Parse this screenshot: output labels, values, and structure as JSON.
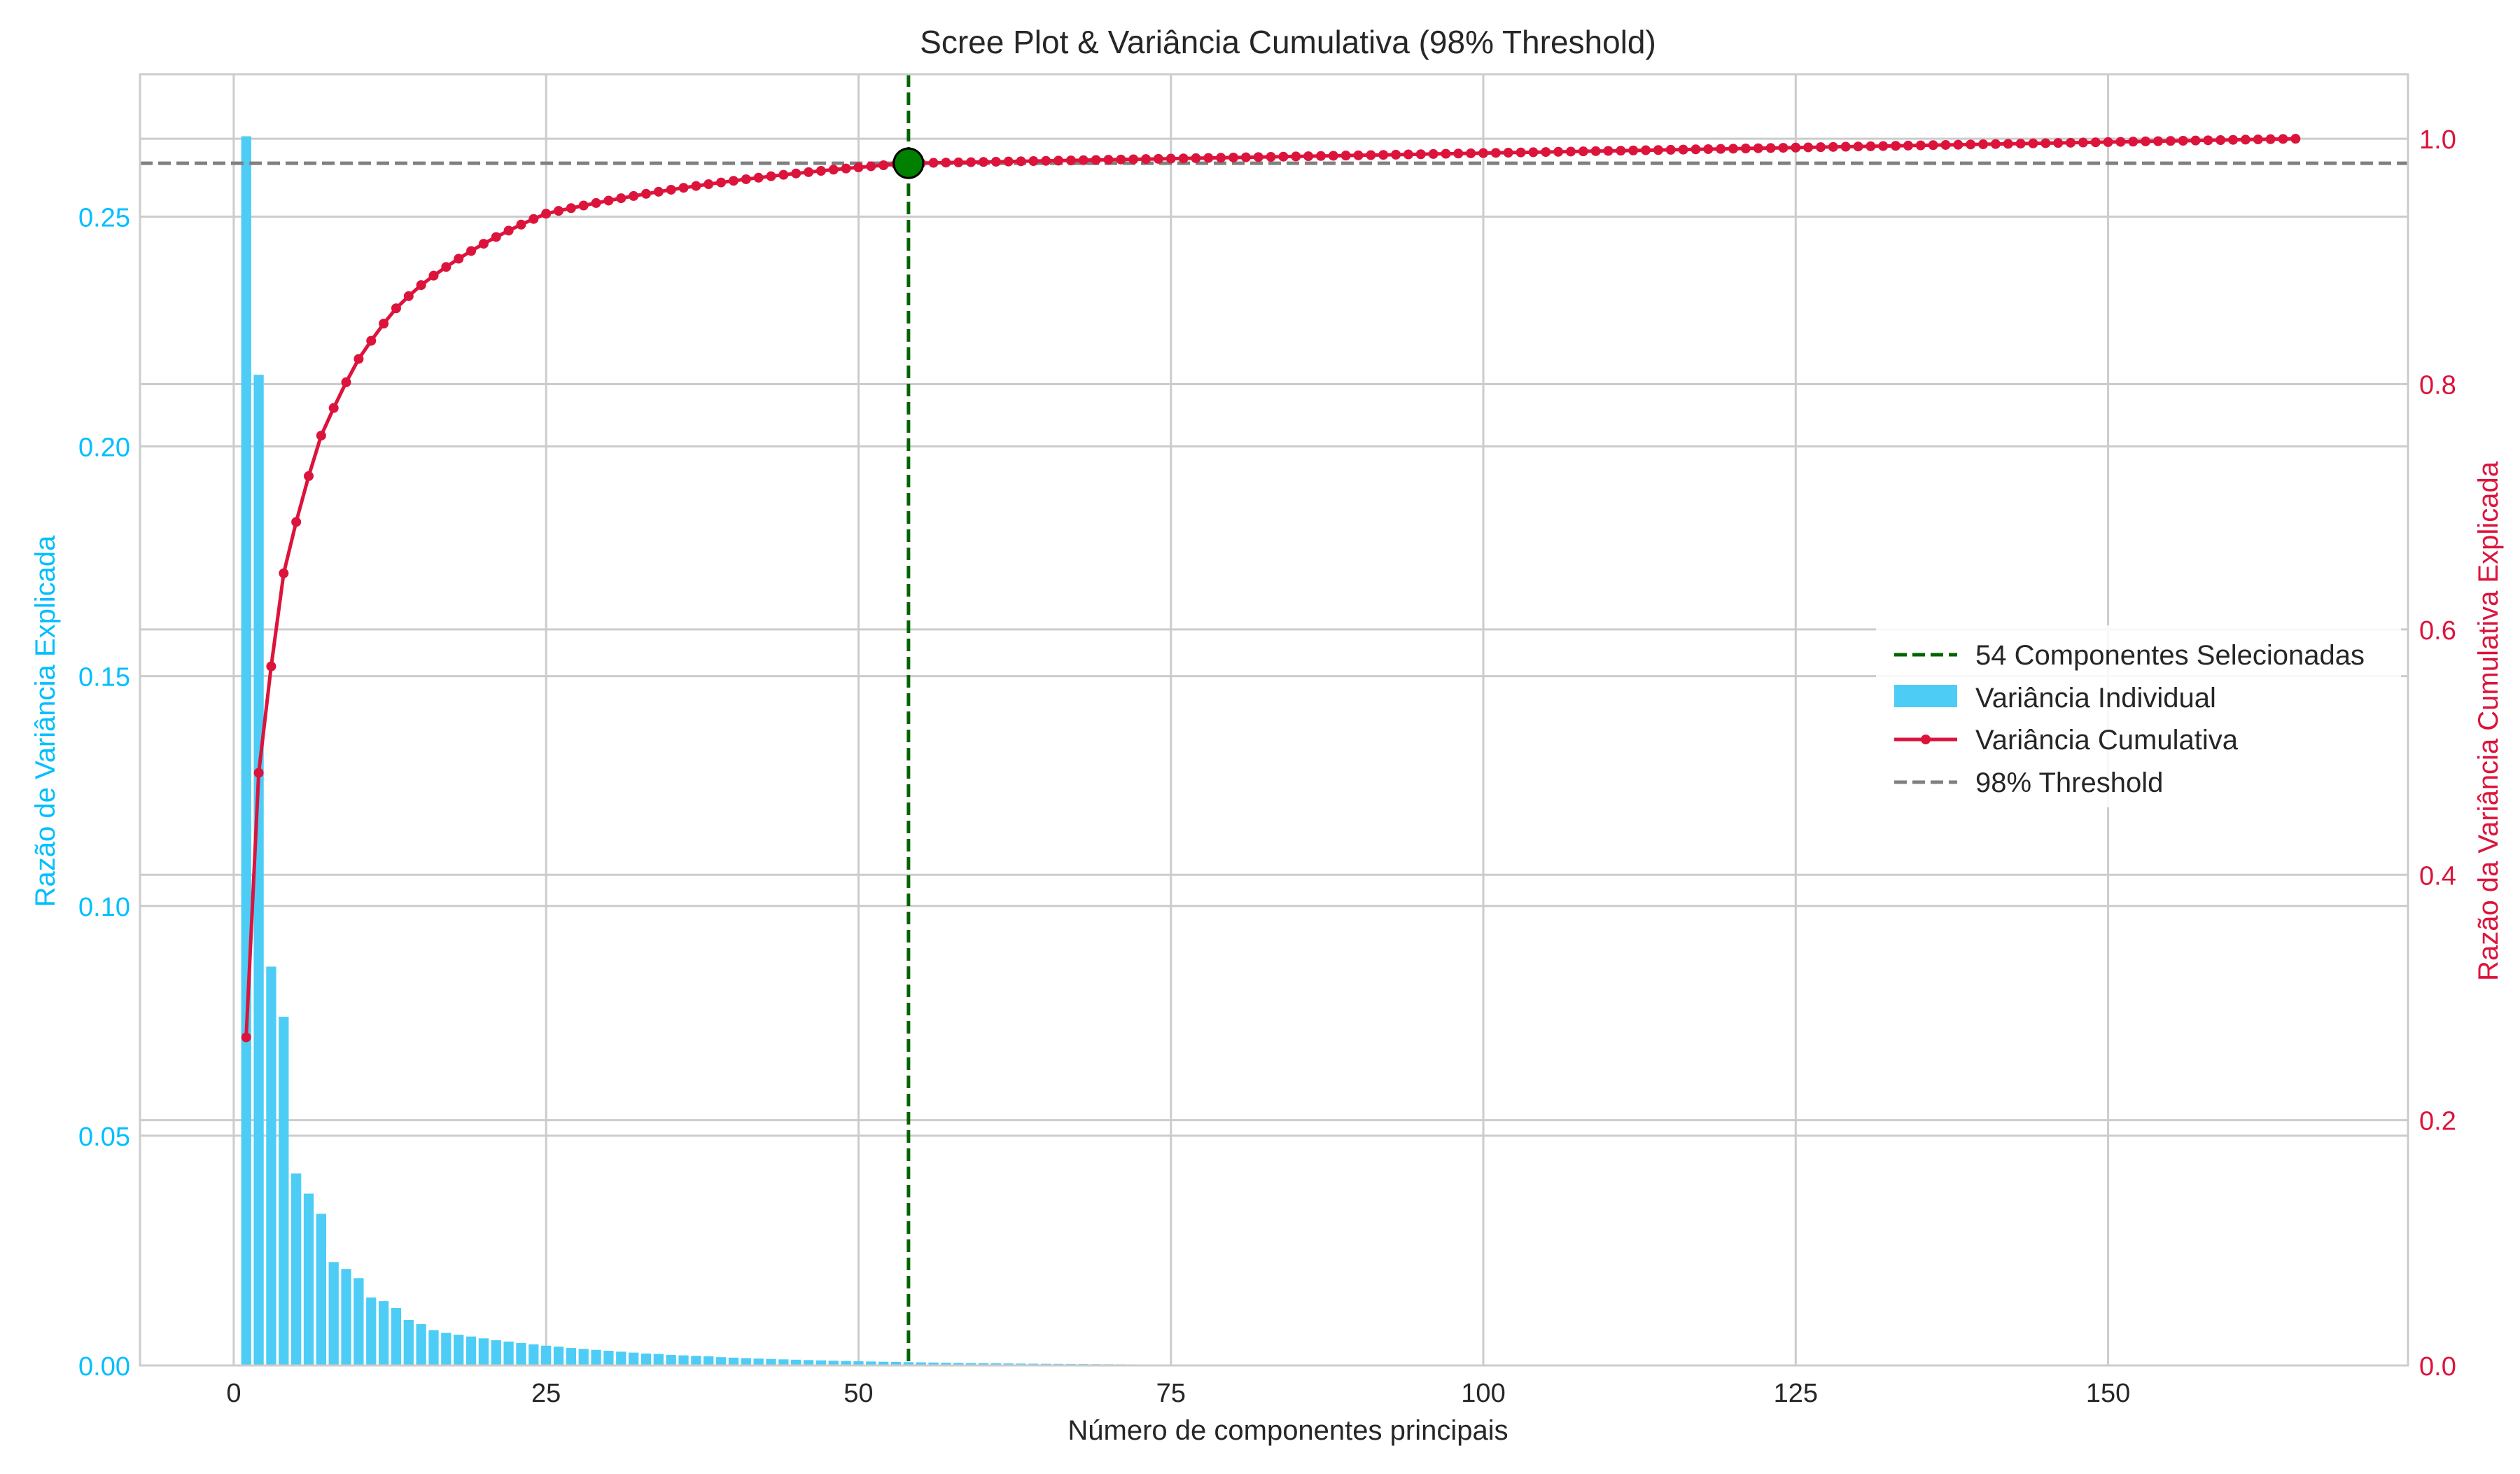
{
  "chart_data": {
    "type": "bar+line",
    "title": "Scree Plot & Variância Cumulativa (98% Threshold)",
    "xlabel": "Número de componentes principais",
    "ylabel_left": "Razão de Variância Explicada",
    "ylabel_right": "Razão da Variância Cumulativa Explicada",
    "xlim": [
      -7.5,
      174
    ],
    "ylim_left": [
      0,
      0.281
    ],
    "ylim_right": [
      0,
      1.0526
    ],
    "xticks": [
      0,
      25,
      50,
      75,
      100,
      125,
      150
    ],
    "xtick_labels": [
      "0",
      "25",
      "50",
      "75",
      "100",
      "125",
      "150"
    ],
    "yticks_left": [
      0,
      0.05,
      0.1,
      0.15,
      0.2,
      0.25
    ],
    "ytick_labels_left": [
      "0.00",
      "0.05",
      "0.10",
      "0.15",
      "0.20",
      "0.25"
    ],
    "yticks_right": [
      0,
      0.2,
      0.4,
      0.6,
      0.8,
      1.0
    ],
    "ytick_labels_right": [
      "0.0",
      "0.2",
      "0.4",
      "0.6",
      "0.8",
      "1.0"
    ],
    "grid": true,
    "n_components": 165,
    "individual_variance_first": [
      0.2675,
      0.2156,
      0.0868,
      0.0759,
      0.0418,
      0.0374,
      0.033,
      0.0225,
      0.021,
      0.019,
      0.0148,
      0.014,
      0.0125,
      0.0099,
      0.009,
      0.0077,
      0.0071,
      0.0067,
      0.0063,
      0.0059,
      0.0055,
      0.0052,
      0.0049,
      0.0046,
      0.0043,
      0.0041,
      0.0038,
      0.0036,
      0.0034,
      0.0032,
      0.003,
      0.0028,
      0.0026,
      0.0025,
      0.0023,
      0.0022,
      0.0021,
      0.002,
      0.0018,
      0.0017
    ],
    "individual_variance_tail_start": 0.0016,
    "individual_variance_tail_decay": 0.94,
    "cumulative_variance_first": [
      0.2675,
      0.4831,
      0.5699,
      0.6458,
      0.6876,
      0.725,
      0.758,
      0.7805,
      0.8015,
      0.8205,
      0.8353,
      0.8493,
      0.8618,
      0.8717,
      0.8807,
      0.8884,
      0.8955,
      0.9022,
      0.9085,
      0.9144,
      0.9199,
      0.9251,
      0.93,
      0.9346,
      0.9389
    ],
    "cumulative_variance_end": 1.0,
    "selected_component": 54,
    "selected_cumulative": 0.98,
    "threshold": 0.98,
    "series": [
      {
        "name": "Variância Individual",
        "kind": "bar",
        "color": "#4dcdf5"
      },
      {
        "name": "Variância Cumulativa",
        "kind": "line",
        "color": "#dc143c"
      }
    ],
    "reference_lines": [
      {
        "name": "54 Componentes Selecionadas",
        "orientation": "vertical",
        "value": 54,
        "color": "#006400",
        "style": "dashed"
      },
      {
        "name": "98% Threshold",
        "orientation": "horizontal",
        "value": 0.98,
        "axis": "right",
        "color": "#808080",
        "style": "dashed"
      }
    ],
    "legend": {
      "placement": "center-right",
      "entries": [
        "54 Componentes Selecionadas",
        "Variância Individual",
        "Variância Cumulativa",
        "98% Threshold"
      ]
    },
    "colors": {
      "left_axis": "#00bfff",
      "right_axis": "#dc143c",
      "bars": "#4dcdf5",
      "cumulative": "#dc143c",
      "selected_line": "#006400",
      "selected_marker": "#008000",
      "threshold": "#808080",
      "grid": "#cccccc",
      "text": "#262626"
    }
  }
}
